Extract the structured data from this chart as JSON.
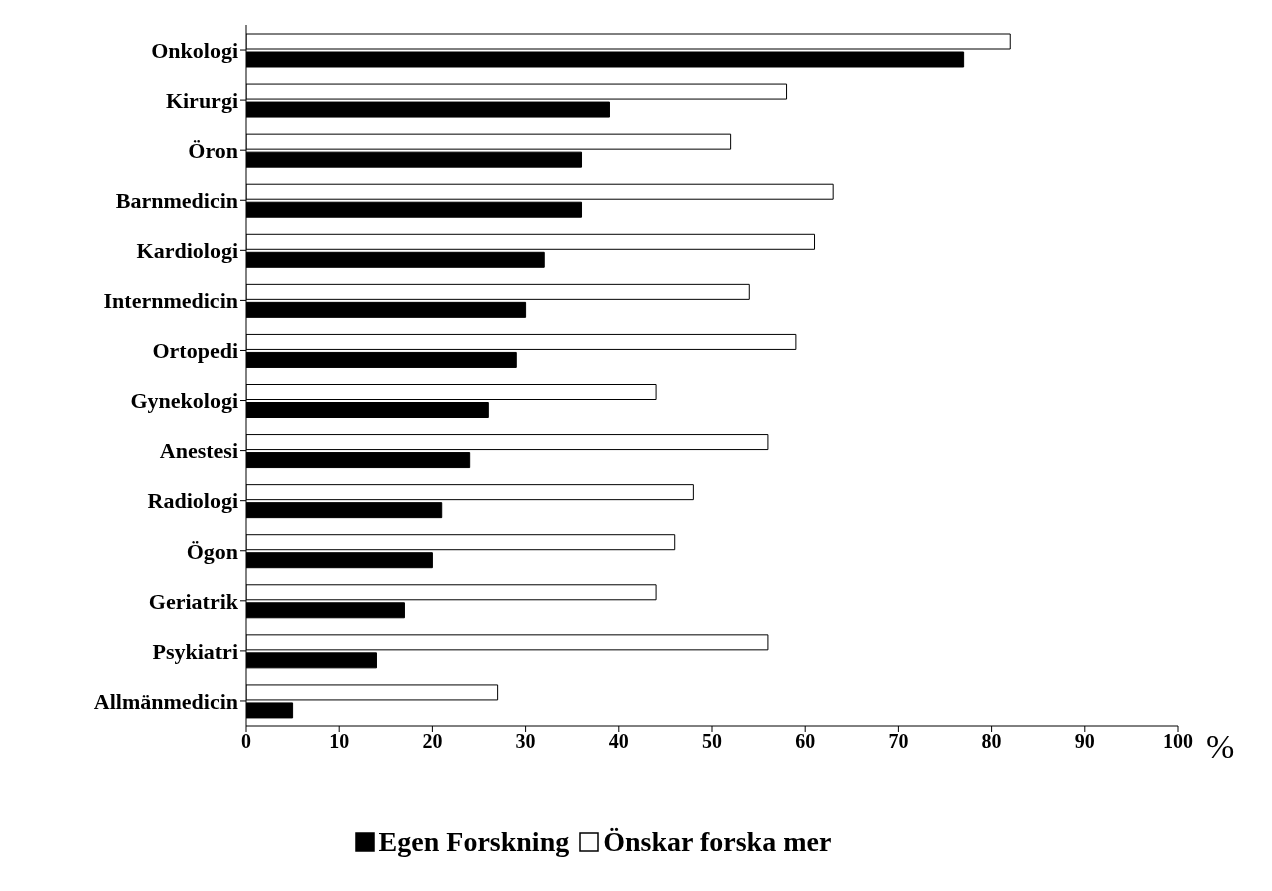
{
  "chart_data": {
    "type": "bar",
    "orientation": "horizontal",
    "categories": [
      "Onkologi",
      "Kirurgi",
      "Öron",
      "Barnmedicin",
      "Kardiologi",
      "Internmedicin",
      "Ortopedi",
      "Gynekologi",
      "Anestesi",
      "Radiologi",
      "Ögon",
      "Geriatrik",
      "Psykiatri",
      "Allmänmedicin"
    ],
    "series": [
      {
        "name": "Egen Forskning",
        "color": "#000000",
        "values": [
          77,
          39,
          36,
          36,
          32,
          30,
          29,
          26,
          24,
          21,
          20,
          17,
          14,
          5
        ]
      },
      {
        "name": "Önskar forska mer",
        "color": "#ffffff",
        "values": [
          82,
          58,
          52,
          63,
          61,
          54,
          59,
          44,
          56,
          48,
          46,
          44,
          56,
          27
        ]
      }
    ],
    "xlabel": "%",
    "xlim": [
      0,
      100
    ],
    "xticks": [
      0,
      10,
      20,
      30,
      40,
      50,
      60,
      70,
      80,
      90,
      100
    ],
    "grid": false,
    "legend": "bottom"
  }
}
